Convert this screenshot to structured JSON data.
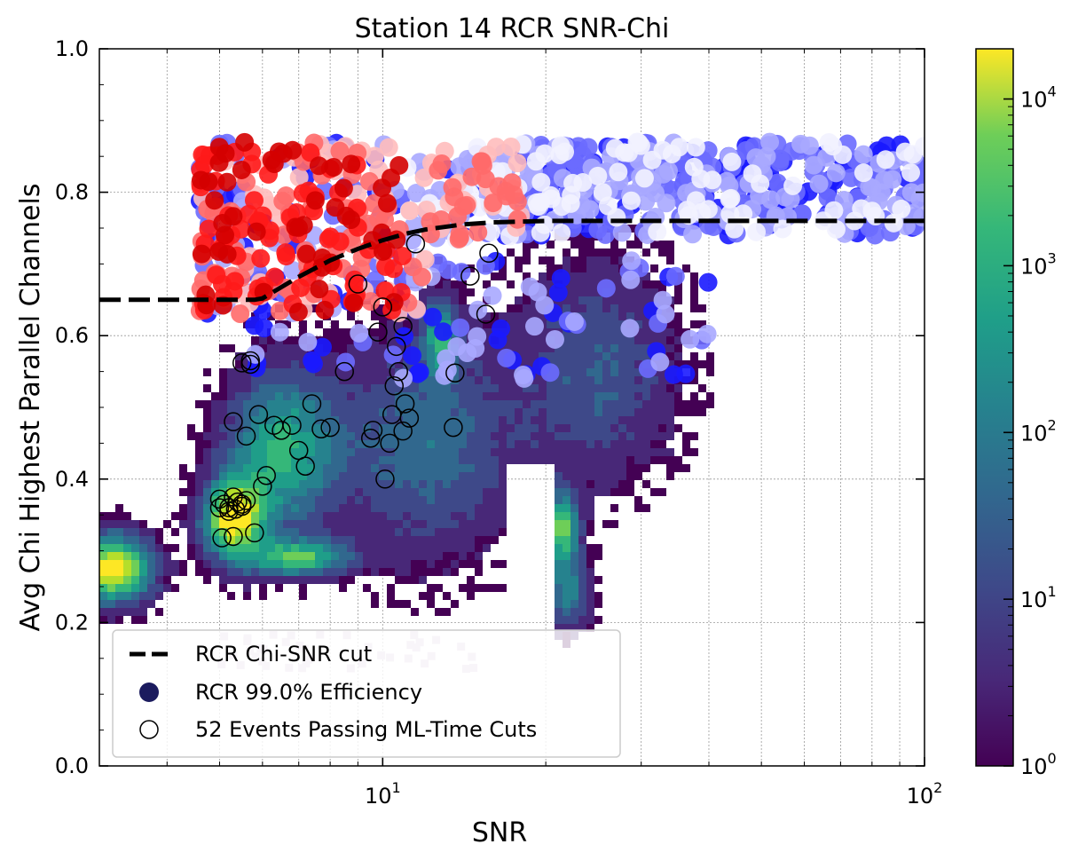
{
  "chart_data": {
    "type": "scatter",
    "title": "Station 14 RCR SNR-Chi",
    "xlabel": "SNR",
    "ylabel": "Avg Chi Highest Parallel Channels",
    "xscale": "log",
    "xlim": [
      3,
      100
    ],
    "ylim": [
      0,
      1
    ],
    "x_ticks": [
      {
        "value": 10,
        "base": "10",
        "exp": "1"
      },
      {
        "value": 100,
        "base": "10",
        "exp": "2"
      }
    ],
    "y_ticks": [
      "0.0",
      "0.2",
      "0.4",
      "0.6",
      "0.8",
      "1.0"
    ],
    "grid": true,
    "legend_position": "lower-left",
    "legend": {
      "cut": "RCR Chi-SNR cut",
      "efficiency": "RCR 99.0% Efficiency",
      "passing": "52 Events Passing ML-Time Cuts"
    },
    "colorbar": {
      "scale": "log",
      "range": [
        1,
        20000
      ],
      "colormap": "viridis",
      "ticks": [
        {
          "value": 1,
          "base": "10",
          "exp": "0"
        },
        {
          "value": 10,
          "base": "10",
          "exp": "1"
        },
        {
          "value": 100,
          "base": "10",
          "exp": "2"
        },
        {
          "value": 1000,
          "base": "10",
          "exp": "3"
        },
        {
          "value": 10000,
          "base": "10",
          "exp": "4"
        }
      ]
    },
    "cut_line": {
      "x": [
        3,
        5.8,
        6.0,
        7.0,
        8.0,
        9.0,
        10.0,
        11.0,
        12.0,
        14.0,
        16.0,
        20.0,
        30.0,
        50.0,
        100.0
      ],
      "y": [
        0.65,
        0.65,
        0.652,
        0.682,
        0.705,
        0.721,
        0.733,
        0.742,
        0.748,
        0.755,
        0.758,
        0.76,
        0.76,
        0.76,
        0.76
      ],
      "color": "#000000"
    },
    "passing_events": {
      "x": [
        5.0,
        5.1,
        5.2,
        5.3,
        5.4,
        5.5,
        5.6,
        5.0,
        5.2,
        5.35,
        5.5,
        5.8,
        6.0,
        5.05,
        5.3,
        5.7,
        6.1,
        5.3,
        5.6,
        5.9,
        6.3,
        6.5,
        6.8,
        7.0,
        7.2,
        7.4,
        7.7,
        8.0,
        8.5,
        5.5,
        5.7,
        9.5,
        9.6,
        10.0,
        10.1,
        10.3,
        10.5,
        10.7,
        10.9,
        11.0,
        11.2,
        10.4,
        10.6,
        10.9,
        11.5,
        13.5,
        13.6,
        14.5,
        15.5,
        15.7,
        9.0,
        9.8
      ],
      "y": [
        0.372,
        0.365,
        0.36,
        0.375,
        0.368,
        0.362,
        0.37,
        0.36,
        0.355,
        0.358,
        0.365,
        0.325,
        0.39,
        0.318,
        0.32,
        0.56,
        0.405,
        0.48,
        0.46,
        0.49,
        0.475,
        0.468,
        0.475,
        0.44,
        0.418,
        0.505,
        0.47,
        0.472,
        0.55,
        0.562,
        0.565,
        0.457,
        0.468,
        0.64,
        0.4,
        0.45,
        0.53,
        0.55,
        0.467,
        0.505,
        0.485,
        0.49,
        0.585,
        0.613,
        0.728,
        0.472,
        0.548,
        0.683,
        0.63,
        0.715,
        0.672,
        0.605
      ],
      "stroke": "#000000"
    },
    "efficiency_points": {
      "description_colors": [
        "#1a1aff",
        "#6b6bff",
        "#a8a8ff",
        "#f2f2ff",
        "#ffbcbc",
        "#ff6a6a",
        "#ff1a1a",
        "#d40000"
      ],
      "legend_color": "#1b1b5e"
    }
  }
}
